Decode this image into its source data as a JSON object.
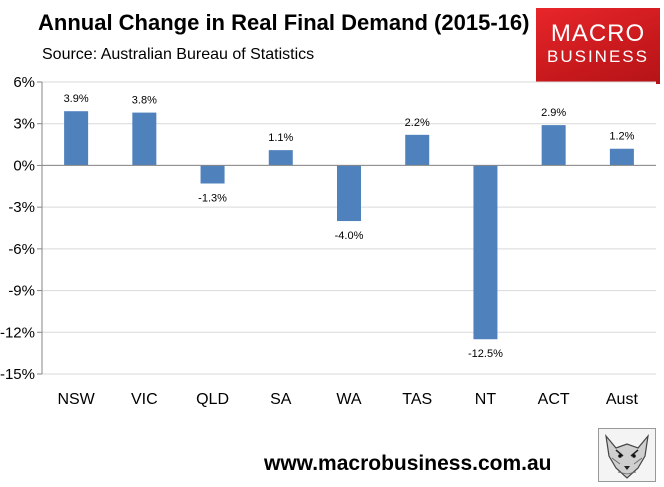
{
  "header": {
    "title": "Annual Change in Real Final Demand (2015-16)",
    "subtitle": "Source: Australian Bureau of Statistics"
  },
  "logo": {
    "line1": "MACRO",
    "line2": "BUSINESS"
  },
  "footer": {
    "website": "www.macrobusiness.com.au"
  },
  "colors": {
    "bar": "#4f81bd",
    "grid": "#d9d9d9",
    "plot_bg": "#ffffff",
    "logo": "#d71f23"
  },
  "chart_data": {
    "type": "bar",
    "title": "Annual Change in Real Final Demand (2015-16)",
    "xlabel": "",
    "ylabel": "",
    "categories": [
      "NSW",
      "VIC",
      "QLD",
      "SA",
      "WA",
      "TAS",
      "NT",
      "ACT",
      "Aust"
    ],
    "values": [
      3.9,
      3.8,
      -1.3,
      1.1,
      -4.0,
      2.2,
      -12.5,
      2.9,
      1.2
    ],
    "data_labels": [
      "3.9%",
      "3.8%",
      "-1.3%",
      "1.1%",
      "-4.0%",
      "2.2%",
      "-12.5%",
      "2.9%",
      "1.2%"
    ],
    "ylim": [
      -15,
      6
    ],
    "yticks": [
      6,
      3,
      0,
      -3,
      -6,
      -9,
      -12,
      -15
    ],
    "ytick_labels": [
      "6%",
      "3%",
      "0%",
      "-3%",
      "-6%",
      "-9%",
      "-12%",
      "-15%"
    ],
    "grid": true,
    "legend": "none"
  }
}
